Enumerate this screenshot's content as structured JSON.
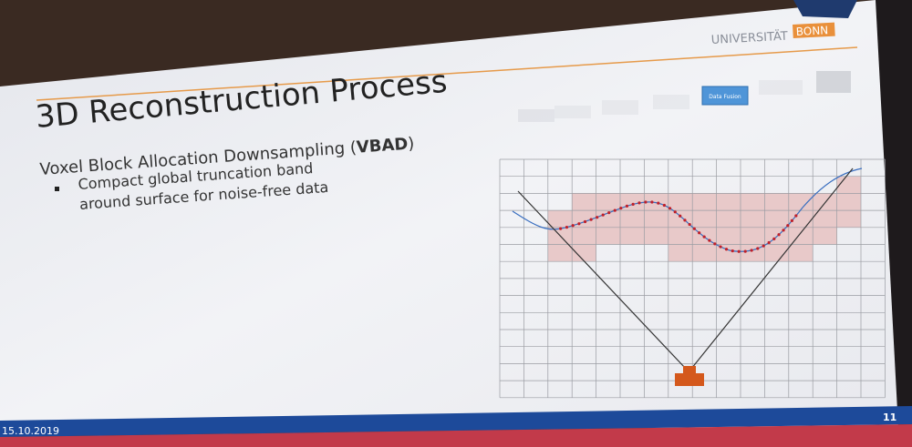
{
  "header": {
    "title": "3D Reconstruction Process",
    "university": "UNIVERSITÄT",
    "university_badge": "BONN"
  },
  "pipeline": {
    "highlighted": "Data Fusion"
  },
  "section": {
    "text_before": "Voxel Block Allocation Downsampling (",
    "bold": "VBAD",
    "text_after": ")"
  },
  "bullets": [
    "Compact global truncation band around surface for noise-free data"
  ],
  "footer": {
    "date": "15.10.2019",
    "page": "11"
  }
}
